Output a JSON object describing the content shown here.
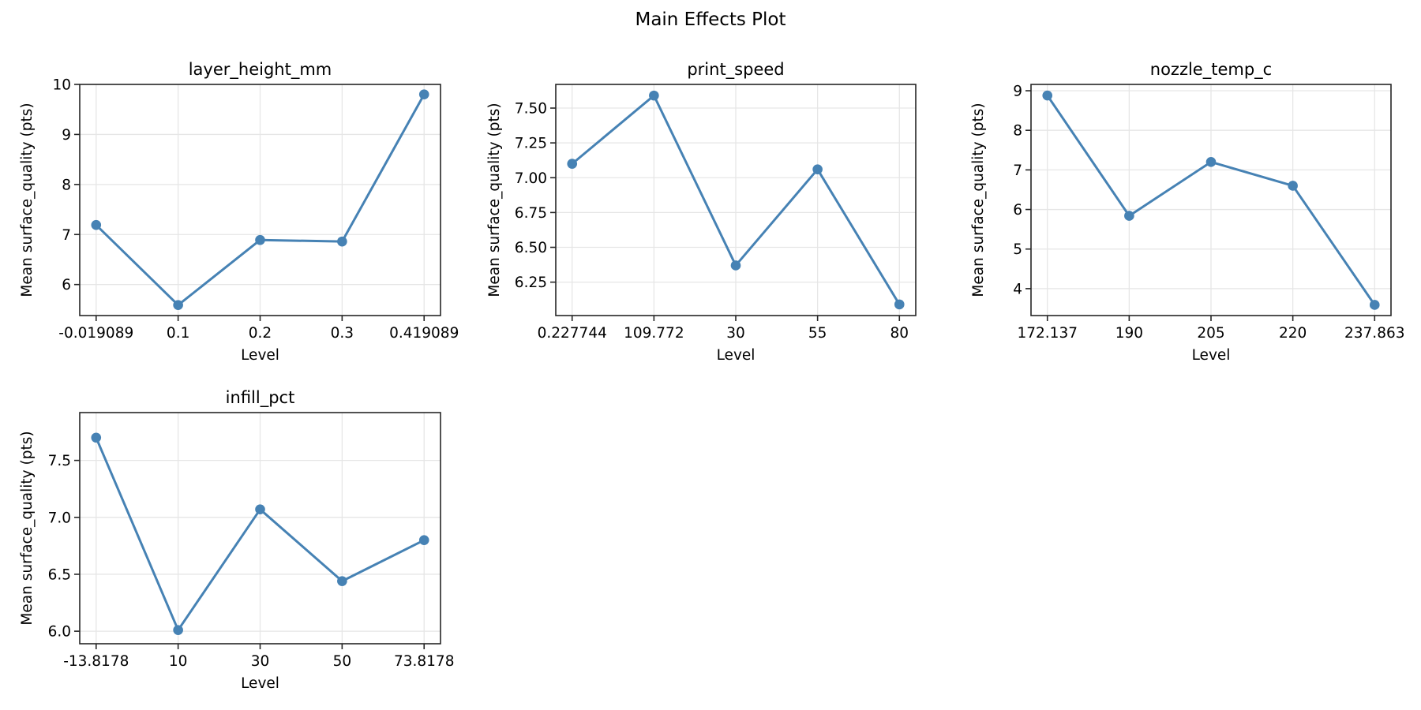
{
  "figure": {
    "title": "Main Effects Plot"
  },
  "style": {
    "line_color": "#4682b4",
    "grid_color": "#e6e6e6",
    "axis_color": "#262626"
  },
  "chart_data": [
    {
      "type": "line",
      "title": "layer_height_mm",
      "xlabel": "Level",
      "ylabel": "Mean surface_quality (pts)",
      "categories": [
        "-0.019089",
        "0.1",
        "0.2",
        "0.3",
        "0.419089"
      ],
      "values": [
        7.19,
        5.59,
        6.89,
        6.86,
        9.8
      ],
      "yticks": [
        6,
        7,
        8,
        9,
        10
      ],
      "ytick_labels": [
        "6",
        "7",
        "8",
        "9",
        "10"
      ],
      "ylim": [
        5.38,
        10.0
      ],
      "grid": true
    },
    {
      "type": "line",
      "title": "print_speed",
      "xlabel": "Level",
      "ylabel": "Mean surface_quality (pts)",
      "categories": [
        "0.227744",
        "109.772",
        "30",
        "55",
        "80"
      ],
      "values": [
        7.1,
        7.59,
        6.37,
        7.06,
        6.09
      ],
      "yticks": [
        6.25,
        6.5,
        6.75,
        7.0,
        7.25,
        7.5
      ],
      "ytick_labels": [
        "6.25",
        "6.50",
        "6.75",
        "7.00",
        "7.25",
        "7.50"
      ],
      "ylim": [
        6.01,
        7.67
      ],
      "grid": true
    },
    {
      "type": "line",
      "title": "nozzle_temp_c",
      "xlabel": "Level",
      "ylabel": "Mean surface_quality (pts)",
      "categories": [
        "172.137",
        "190",
        "205",
        "220",
        "237.863"
      ],
      "values": [
        8.88,
        5.84,
        7.2,
        6.6,
        3.59
      ],
      "yticks": [
        4,
        5,
        6,
        7,
        8,
        9
      ],
      "ytick_labels": [
        "4",
        "5",
        "6",
        "7",
        "8",
        "9"
      ],
      "ylim": [
        3.32,
        9.16
      ],
      "grid": true
    },
    {
      "type": "line",
      "title": "infill_pct",
      "xlabel": "Level",
      "ylabel": "Mean surface_quality (pts)",
      "categories": [
        "-13.8178",
        "10",
        "30",
        "50",
        "73.8178"
      ],
      "values": [
        7.7,
        6.01,
        7.07,
        6.44,
        6.8
      ],
      "yticks": [
        6.0,
        6.5,
        7.0,
        7.5
      ],
      "ytick_labels": [
        "6.0",
        "6.5",
        "7.0",
        "7.5"
      ],
      "ylim": [
        5.89,
        7.92
      ],
      "grid": true
    }
  ]
}
